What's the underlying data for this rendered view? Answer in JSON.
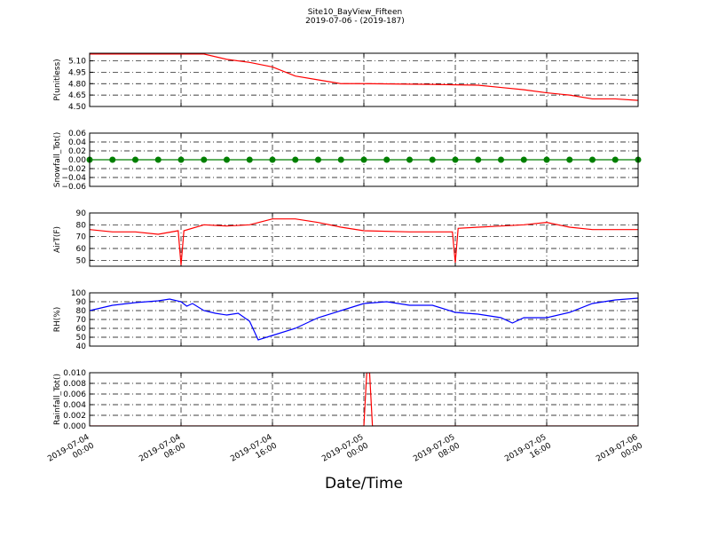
{
  "title": "Site10_BayView_Fifteen",
  "subtitle": "2019-07-06 - (2019-187)",
  "xlabel": "Date/Time",
  "xlim": [
    "2019-07-04 00:00",
    "2019-07-06 00:00"
  ],
  "xticks": [
    "2019-07-04 00:00",
    "2019-07-04 08:00",
    "2019-07-04 16:00",
    "2019-07-05 00:00",
    "2019-07-05 08:00",
    "2019-07-05 16:00",
    "2019-07-06 00:00"
  ],
  "grid": true,
  "chart_data": [
    {
      "type": "line",
      "ylabel": "P(unitless)",
      "ylim": [
        4.5,
        5.2
      ],
      "yticks": [
        {
          "value": 4.5,
          "label": "4.50"
        },
        {
          "value": 4.65,
          "label": "4.65"
        },
        {
          "value": 4.8,
          "label": "4.80"
        },
        {
          "value": 4.95,
          "label": "4.95"
        },
        {
          "value": 5.1,
          "label": "5.10"
        }
      ],
      "x": [
        "2019-07-04 00:00",
        "2019-07-04 04:00",
        "2019-07-04 08:00",
        "2019-07-04 10:00",
        "2019-07-04 12:00",
        "2019-07-04 14:00",
        "2019-07-04 16:00",
        "2019-07-04 18:00",
        "2019-07-04 20:00",
        "2019-07-04 22:00",
        "2019-07-05 00:00",
        "2019-07-05 06:00",
        "2019-07-05 10:00",
        "2019-07-05 12:00",
        "2019-07-05 14:00",
        "2019-07-05 16:00",
        "2019-07-05 18:00",
        "2019-07-05 20:00",
        "2019-07-05 22:00",
        "2019-07-06 00:00"
      ],
      "series": [
        {
          "color": "#ff0000",
          "values": [
            5.19,
            5.19,
            5.19,
            5.19,
            5.12,
            5.08,
            5.02,
            4.9,
            4.85,
            4.8,
            4.8,
            4.79,
            4.78,
            4.75,
            4.72,
            4.68,
            4.65,
            4.6,
            4.6,
            4.58
          ]
        }
      ]
    },
    {
      "type": "line",
      "ylabel": "Snowfall_Tot()",
      "ylim": [
        -0.06,
        0.06
      ],
      "marker": "o",
      "yticks": [
        {
          "value": -0.06,
          "label": "−0.06"
        },
        {
          "value": -0.04,
          "label": "−0.04"
        },
        {
          "value": -0.02,
          "label": "−0.02"
        },
        {
          "value": 0,
          "label": "0.00"
        },
        {
          "value": 0.02,
          "label": "0.02"
        },
        {
          "value": 0.04,
          "label": "0.04"
        },
        {
          "value": 0.06,
          "label": "0.06"
        }
      ],
      "x": [
        "2019-07-04 00:00",
        "2019-07-04 02:00",
        "2019-07-04 04:00",
        "2019-07-04 06:00",
        "2019-07-04 08:00",
        "2019-07-04 10:00",
        "2019-07-04 12:00",
        "2019-07-04 14:00",
        "2019-07-04 16:00",
        "2019-07-04 18:00",
        "2019-07-04 20:00",
        "2019-07-04 22:00",
        "2019-07-05 00:00",
        "2019-07-05 02:00",
        "2019-07-05 04:00",
        "2019-07-05 06:00",
        "2019-07-05 08:00",
        "2019-07-05 10:00",
        "2019-07-05 12:00",
        "2019-07-05 14:00",
        "2019-07-05 16:00",
        "2019-07-05 18:00",
        "2019-07-05 20:00",
        "2019-07-05 22:00",
        "2019-07-06 00:00"
      ],
      "series": [
        {
          "color": "#007f00",
          "values": [
            0,
            0,
            0,
            0,
            0,
            0,
            0,
            0,
            0,
            0,
            0,
            0,
            0,
            0,
            0,
            0,
            0,
            0,
            0,
            0,
            0,
            0,
            0,
            0,
            0
          ]
        }
      ]
    },
    {
      "type": "line",
      "ylabel": "AirT(F)",
      "ylim": [
        45,
        90
      ],
      "yticks": [
        50,
        60,
        70,
        80,
        90
      ],
      "x": [
        "2019-07-04 00:00",
        "2019-07-04 02:00",
        "2019-07-04 04:00",
        "2019-07-04 06:00",
        "2019-07-04 07:45",
        "2019-07-04 08:00",
        "2019-07-04 08:15",
        "2019-07-04 10:00",
        "2019-07-04 12:00",
        "2019-07-04 14:00",
        "2019-07-04 16:00",
        "2019-07-04 18:00",
        "2019-07-04 20:00",
        "2019-07-04 22:00",
        "2019-07-05 00:00",
        "2019-07-05 04:00",
        "2019-07-05 07:45",
        "2019-07-05 08:00",
        "2019-07-05 08:15",
        "2019-07-05 10:00",
        "2019-07-05 12:00",
        "2019-07-05 14:00",
        "2019-07-05 16:00",
        "2019-07-05 18:00",
        "2019-07-05 20:00",
        "2019-07-05 22:00",
        "2019-07-06 00:00"
      ],
      "series": [
        {
          "color": "#ff0000",
          "values": [
            76,
            74,
            74,
            72,
            75,
            46,
            75,
            80,
            79,
            80,
            85,
            85,
            82,
            78,
            75,
            74,
            74,
            48,
            77,
            78,
            79,
            80,
            82,
            78,
            76,
            76,
            76
          ]
        }
      ]
    },
    {
      "type": "line",
      "ylabel": "RH(%)",
      "ylim": [
        40,
        100
      ],
      "yticks": [
        40,
        50,
        60,
        70,
        80,
        90,
        100
      ],
      "x": [
        "2019-07-04 00:00",
        "2019-07-04 02:00",
        "2019-07-04 04:00",
        "2019-07-04 06:00",
        "2019-07-04 07:00",
        "2019-07-04 08:00",
        "2019-07-04 08:30",
        "2019-07-04 09:00",
        "2019-07-04 10:00",
        "2019-07-04 11:00",
        "2019-07-04 12:00",
        "2019-07-04 13:00",
        "2019-07-04 14:00",
        "2019-07-04 14:45",
        "2019-07-04 16:00",
        "2019-07-04 18:00",
        "2019-07-04 20:00",
        "2019-07-04 22:00",
        "2019-07-05 00:00",
        "2019-07-05 02:00",
        "2019-07-05 04:00",
        "2019-07-05 06:00",
        "2019-07-05 08:00",
        "2019-07-05 10:00",
        "2019-07-05 12:00",
        "2019-07-05 13:00",
        "2019-07-05 14:00",
        "2019-07-05 16:00",
        "2019-07-05 18:00",
        "2019-07-05 20:00",
        "2019-07-05 22:00",
        "2019-07-06 00:00"
      ],
      "series": [
        {
          "color": "#0000ff",
          "values": [
            80,
            86,
            89,
            91,
            93,
            90,
            85,
            88,
            80,
            77,
            75,
            77,
            68,
            47,
            52,
            60,
            72,
            80,
            88,
            90,
            86,
            86,
            78,
            76,
            72,
            66,
            72,
            72,
            78,
            88,
            92,
            94
          ]
        }
      ]
    },
    {
      "type": "line",
      "ylabel": "Rainfall_Tot()",
      "ylim": [
        0,
        0.01
      ],
      "yticks": [
        {
          "value": 0,
          "label": "0.000"
        },
        {
          "value": 0.002,
          "label": "0.002"
        },
        {
          "value": 0.004,
          "label": "0.004"
        },
        {
          "value": 0.006,
          "label": "0.006"
        },
        {
          "value": 0.008,
          "label": "0.008"
        },
        {
          "value": 0.01,
          "label": "0.010"
        }
      ],
      "x": [
        "2019-07-04 00:00",
        "2019-07-05 00:00",
        "2019-07-05 00:15",
        "2019-07-05 00:30",
        "2019-07-05 00:45",
        "2019-07-06 00:00"
      ],
      "series": [
        {
          "color": "#ff0000",
          "values": [
            0,
            0,
            0.01,
            0.01,
            0,
            0
          ]
        }
      ]
    }
  ]
}
